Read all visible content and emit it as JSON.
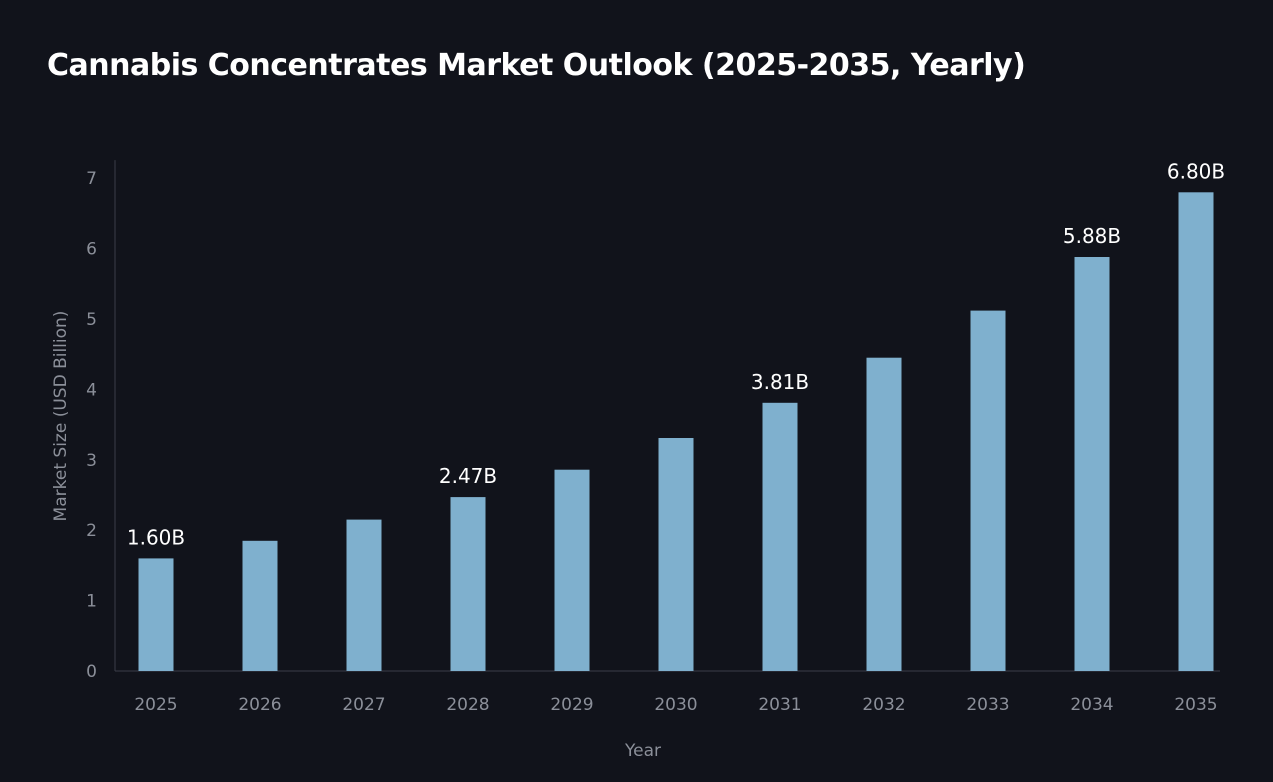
{
  "chart_data": {
    "type": "bar",
    "title": "Cannabis Concentrates Market Outlook (2025-2035, Yearly)",
    "xlabel": "Year",
    "ylabel": "Market Size (USD Billion)",
    "categories": [
      "2025",
      "2026",
      "2027",
      "2028",
      "2029",
      "2030",
      "2031",
      "2032",
      "2033",
      "2034",
      "2035"
    ],
    "values": [
      1.6,
      1.85,
      2.15,
      2.47,
      2.86,
      3.31,
      3.81,
      4.45,
      5.12,
      5.88,
      6.8
    ],
    "data_labels": [
      "1.60B",
      "",
      "",
      "2.47B",
      "",
      "",
      "3.81B",
      "",
      "",
      "5.88B",
      "6.80B"
    ],
    "ylim": [
      0,
      7.2
    ],
    "yticks": [
      0,
      1,
      2,
      3,
      4,
      5,
      6,
      7
    ],
    "grid": false,
    "legend": "none",
    "colors": {
      "background": "#11131b",
      "bar": "#7fb0ce",
      "axis": "#3a3e48",
      "tick_text": "#8b8f99",
      "data_label_text": "#ffffff"
    }
  }
}
